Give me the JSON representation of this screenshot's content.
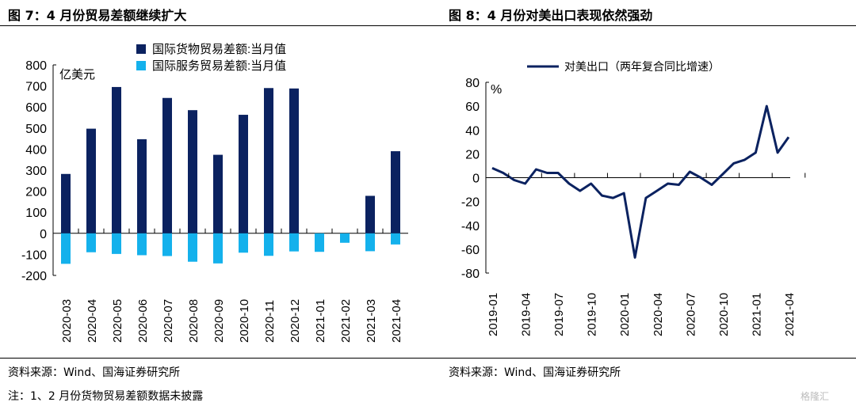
{
  "left_title": "图 7：4 月份贸易差额继续扩大",
  "right_title": "图 8：4 月份对美出口表现依然强劲",
  "left_source": "资料来源：Wind、国海证券研究所",
  "right_source": "资料来源：Wind、国海证券研究所",
  "note": "注：1、2 月份货物贸易差额数据未披露",
  "watermark": "格隆汇",
  "chart_data": [
    {
      "type": "bar",
      "unit_label": "亿美元",
      "categories": [
        "2020-03",
        "2020-04",
        "2020-05",
        "2020-06",
        "2020-07",
        "2020-08",
        "2020-09",
        "2020-10",
        "2020-11",
        "2020-12",
        "2021-01",
        "2021-02",
        "2021-03",
        "2021-04"
      ],
      "series": [
        {
          "name": "国际货物贸易差额:当月值",
          "color": "#0b2260",
          "values": [
            282,
            497,
            695,
            447,
            643,
            585,
            373,
            563,
            690,
            688,
            null,
            null,
            178,
            390
          ]
        },
        {
          "name": "国际服务贸易差额:当月值",
          "color": "#14b1ec",
          "values": [
            -145,
            -90,
            -98,
            -104,
            -108,
            -135,
            -143,
            -92,
            -107,
            -86,
            -88,
            -45,
            -85,
            -53
          ]
        }
      ],
      "ylim": [
        -200,
        800
      ],
      "yticks": [
        "-200",
        "-100",
        "0",
        "100",
        "200",
        "300",
        "400",
        "500",
        "600",
        "700",
        "800"
      ],
      "legend": "top"
    },
    {
      "type": "line",
      "unit_label": "%",
      "x": [
        "2019-01",
        "2019-02",
        "2019-03",
        "2019-04",
        "2019-05",
        "2019-06",
        "2019-07",
        "2019-08",
        "2019-09",
        "2019-10",
        "2019-11",
        "2019-12",
        "2020-01",
        "2020-02",
        "2020-03",
        "2020-04",
        "2020-05",
        "2020-06",
        "2020-07",
        "2020-08",
        "2020-09",
        "2020-10",
        "2020-11",
        "2020-12",
        "2021-01",
        "2021-02",
        "2021-03",
        "2021-04"
      ],
      "xtick_labels": [
        "2019-01",
        "2019-04",
        "2019-07",
        "2019-10",
        "2020-01",
        "2020-04",
        "2020-07",
        "2020-10",
        "2021-01",
        "2021-04"
      ],
      "series": [
        {
          "name": "对美出口（两年复合同比增速）",
          "color": "#0b2260",
          "values": [
            8,
            4,
            -2,
            -5,
            7,
            4,
            4,
            -5,
            -11,
            -5,
            -15,
            -17,
            -13,
            -67,
            -17,
            -11,
            -5,
            -6,
            5,
            0,
            -6,
            3,
            12,
            15,
            21,
            60,
            21,
            34
          ]
        }
      ],
      "ylim": [
        -80,
        80
      ],
      "yticks": [
        "-80",
        "-60",
        "-40",
        "-20",
        "0",
        "20",
        "40",
        "60",
        "80"
      ],
      "legend": "top"
    }
  ]
}
